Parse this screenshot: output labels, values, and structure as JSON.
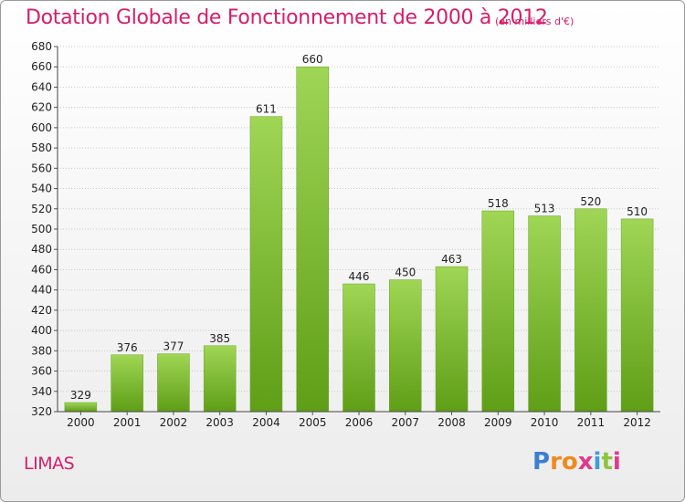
{
  "header": {
    "title": "Dotation Globale de Fonctionnement de 2000 à 2012",
    "subtitle": "(en milliers d'€)"
  },
  "footer": {
    "town": "LIMAS",
    "brand_letters": [
      "P",
      "r",
      "o",
      "x",
      "i",
      "t",
      "i"
    ],
    "brand_colors": [
      "#3a7fd0",
      "#f08a1c",
      "#f08a1c",
      "#e03a8a",
      "#3aa0d8",
      "#8cc63f",
      "#e03a8a"
    ]
  },
  "chart_data": {
    "type": "bar",
    "title": "Dotation Globale de Fonctionnement de 2000 à 2012",
    "subtitle": "(en milliers d'€)",
    "xlabel": "",
    "ylabel": "",
    "categories": [
      "2000",
      "2001",
      "2002",
      "2003",
      "2004",
      "2005",
      "2006",
      "2007",
      "2008",
      "2009",
      "2010",
      "2011",
      "2012"
    ],
    "values": [
      329,
      376,
      377,
      385,
      611,
      660,
      446,
      450,
      463,
      518,
      513,
      520,
      510
    ],
    "ylim": [
      320,
      680
    ],
    "yticks": [
      320,
      340,
      360,
      380,
      400,
      420,
      440,
      460,
      480,
      500,
      520,
      540,
      560,
      580,
      600,
      620,
      640,
      660,
      680
    ],
    "grid": true,
    "legend": "none",
    "bar_color": "#8cc63f"
  }
}
